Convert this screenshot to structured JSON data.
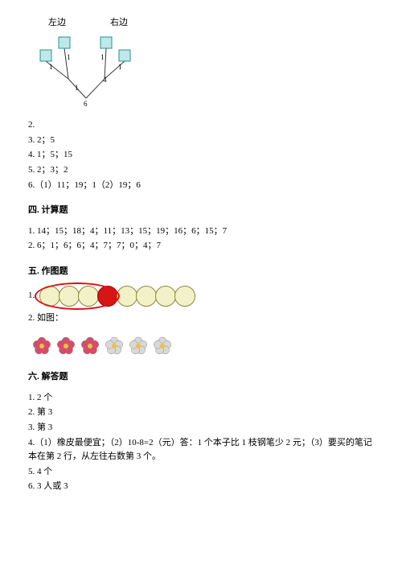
{
  "diagram": {
    "left_label": "左边",
    "right_label": "右边",
    "box_fill": "#bfe8e8",
    "box_stroke": "#2a9090",
    "line_color": "#3a3a3a",
    "edge_labels": [
      "1",
      "1",
      "1",
      "1",
      "1"
    ],
    "mid_label": "4",
    "bottom_label": "6"
  },
  "pre_section": {
    "item2": "2.",
    "line3": "3. 2；5",
    "line4": "4. 1；5；15",
    "line5": "5. 2；3；2",
    "line6": "6.（1）11；19；1（2）19；6"
  },
  "section4": {
    "title": "四. 计算题",
    "line1": "1. 14；15；18；4；11；13；15；19；16；6；15；7",
    "line2": "2. 6；1；6；6；4；7；7；0；4；7"
  },
  "section5": {
    "title": "五. 作图题",
    "item1_prefix": "1.",
    "item2": "2. 如图：",
    "circle_count": 8,
    "red_index": 3,
    "ring_count": 4,
    "circle_fill": "#f2f2c8",
    "circle_border": "#8a8a3a",
    "red_fill": "#d91414",
    "ring_color": "#d91414",
    "flower_colors": [
      "#d84a6a",
      "#d84a6a",
      "#d84a6a",
      "#d8d8d8",
      "#d8d8d8",
      "#d8d8d8"
    ],
    "flower_center": "#f0c040"
  },
  "section6": {
    "title": "六. 解答题",
    "line1": "1. 2 个",
    "line2": "2. 第 3",
    "line3": "3. 第 3",
    "line4": "4.（1）橡皮最便宜；（2）10-8=2（元）答：1 个本子比 1 枝钢笔少 2 元；（3）要买的笔记本在第 2 行，从左往右数第 3 个。",
    "line5": "5.    4 个",
    "line6": "6. 3 人或 3"
  }
}
